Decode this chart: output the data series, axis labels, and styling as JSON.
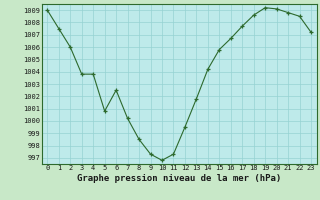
{
  "x": [
    0,
    1,
    2,
    3,
    4,
    5,
    6,
    7,
    8,
    9,
    10,
    11,
    12,
    13,
    14,
    15,
    16,
    17,
    18,
    19,
    20,
    21,
    22,
    23
  ],
  "y": [
    1009.0,
    1007.5,
    1006.0,
    1003.8,
    1003.8,
    1000.8,
    1002.5,
    1000.2,
    998.5,
    997.3,
    996.8,
    997.3,
    999.5,
    1001.8,
    1004.2,
    1005.8,
    1006.7,
    1007.7,
    1008.6,
    1009.2,
    1009.1,
    1008.8,
    1008.5,
    1007.2
  ],
  "line_color": "#2d6a2d",
  "marker_color": "#2d6a2d",
  "bg_color": "#beeaea",
  "grid_color": "#96d2d2",
  "xlabel": "Graphe pression niveau de la mer (hPa)",
  "xlim_min": -0.5,
  "xlim_max": 23.5,
  "ylim_min": 996.5,
  "ylim_max": 1009.5,
  "yticks": [
    997,
    998,
    999,
    1000,
    1001,
    1002,
    1003,
    1004,
    1005,
    1006,
    1007,
    1008,
    1009
  ],
  "xticks": [
    0,
    1,
    2,
    3,
    4,
    5,
    6,
    7,
    8,
    9,
    10,
    11,
    12,
    13,
    14,
    15,
    16,
    17,
    18,
    19,
    20,
    21,
    22,
    23
  ],
  "tick_fontsize": 5.0,
  "xlabel_fontsize": 6.5,
  "outer_bg": "#c8e8c8",
  "spine_color": "#2d6a2d",
  "text_color": "#1a1a1a"
}
